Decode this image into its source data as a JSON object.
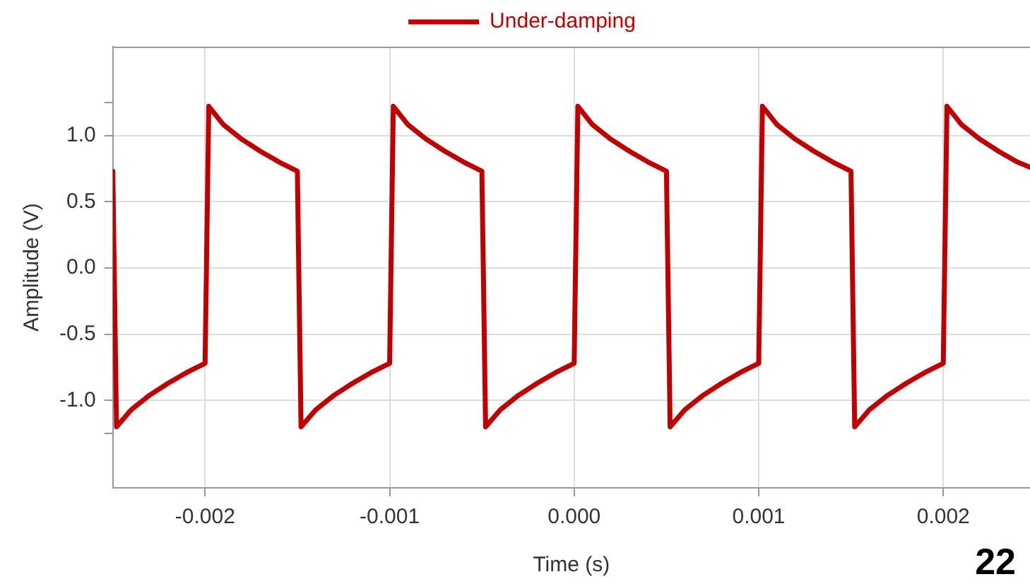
{
  "chart_data": {
    "type": "line",
    "xlabel": "Time (s)",
    "ylabel": "Amplitude (V)",
    "annotations": [
      "22"
    ],
    "xlim": [
      -0.0025,
      0.00247
    ],
    "ylim": [
      -1.66,
      1.67
    ],
    "xticks": [
      {
        "value": -0.002,
        "label": "-0.002"
      },
      {
        "value": -0.001,
        "label": "-0.001"
      },
      {
        "value": 0,
        "label": "0.000"
      },
      {
        "value": 0.001,
        "label": "0.001"
      },
      {
        "value": 0.002,
        "label": "0.002"
      }
    ],
    "yticks": [
      {
        "value": -1.25,
        "label": null
      },
      {
        "value": -1,
        "label": "-1.0"
      },
      {
        "value": -0.5,
        "label": "-0.5"
      },
      {
        "value": 0,
        "label": "0.0"
      },
      {
        "value": 0.5,
        "label": "0.5"
      },
      {
        "value": 1,
        "label": "1.0"
      },
      {
        "value": 1.25,
        "label": null
      }
    ],
    "grid": true,
    "legend": "top",
    "marker": "none",
    "line_style": "solid",
    "series": [
      {
        "name": "Under-damping",
        "color": "#c00000",
        "x": [
          -0.0025,
          -0.00248,
          -0.0024,
          -0.0023,
          -0.0022,
          -0.0021,
          -0.002,
          -0.00198,
          -0.0019,
          -0.0018,
          -0.0017,
          -0.0016,
          -0.0015,
          -0.00148,
          -0.0014,
          -0.0013,
          -0.0012,
          -0.0011,
          -0.001,
          -0.00098,
          -0.0009,
          -0.0008,
          -0.0007,
          -0.0006,
          -0.0005,
          -0.00048,
          -0.0004,
          -0.0003,
          -0.0002,
          -0.0001,
          0,
          2e-05,
          0.0001,
          0.0002,
          0.0003,
          0.0004,
          0.0005,
          0.00052,
          0.0006,
          0.0007,
          0.0008,
          0.0009,
          0.001,
          0.00102,
          0.0011,
          0.0012,
          0.0013,
          0.0014,
          0.0015,
          0.00152,
          0.0016,
          0.0017,
          0.0018,
          0.0019,
          0.002,
          0.00202,
          0.0021,
          0.0022,
          0.0023,
          0.0024,
          0.00247
        ],
        "values": [
          0.73,
          -1.2,
          -1.07,
          -0.96,
          -0.87,
          -0.79,
          -0.72,
          1.22,
          1.08,
          0.97,
          0.88,
          0.8,
          0.73,
          -1.2,
          -1.07,
          -0.96,
          -0.87,
          -0.79,
          -0.72,
          1.22,
          1.08,
          0.97,
          0.88,
          0.8,
          0.73,
          -1.2,
          -1.07,
          -0.96,
          -0.87,
          -0.79,
          -0.72,
          1.22,
          1.08,
          0.97,
          0.88,
          0.8,
          0.73,
          -1.2,
          -1.07,
          -0.96,
          -0.87,
          -0.79,
          -0.72,
          1.22,
          1.08,
          0.97,
          0.88,
          0.8,
          0.73,
          -1.2,
          -1.07,
          -0.96,
          -0.87,
          -0.79,
          -0.72,
          1.22,
          1.08,
          0.97,
          0.88,
          0.8,
          0.76
        ]
      }
    ]
  }
}
